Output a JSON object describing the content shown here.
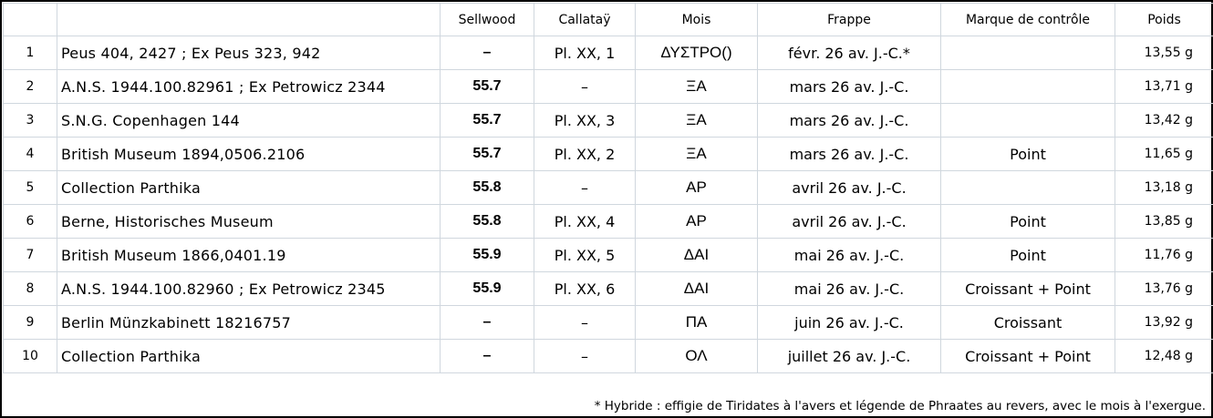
{
  "headers": {
    "index": "",
    "source": "",
    "sellwood": "Sellwood",
    "callatay": "Callataÿ",
    "mois": "Mois",
    "frappe": "Frappe",
    "marque": "Marque de contrôle",
    "poids": "Poids"
  },
  "rows": [
    {
      "n": "1",
      "source": "Peus 404, 2427 ; Ex Peus 323, 942",
      "sellwood": "–",
      "callatay": "Pl. XX, 1",
      "mois": "ΔΥΣΤΡΟ()",
      "frappe": "févr. 26 av. J.-C.*",
      "marque": "",
      "poids": "13,55 g"
    },
    {
      "n": "2",
      "source": "A.N.S. 1944.100.82961 ; Ex Petrowicz 2344",
      "sellwood": "55.7",
      "callatay": "–",
      "mois": "ΞΑ",
      "frappe": "mars 26 av. J.-C.",
      "marque": "",
      "poids": "13,71 g"
    },
    {
      "n": "3",
      "source": "S.N.G. Copenhagen 144",
      "sellwood": "55.7",
      "callatay": "Pl. XX, 3",
      "mois": "ΞΑ",
      "frappe": "mars 26 av. J.-C.",
      "marque": "",
      "poids": "13,42 g"
    },
    {
      "n": "4",
      "source": "British Museum 1894,0506.2106",
      "sellwood": "55.7",
      "callatay": "Pl. XX, 2",
      "mois": "ΞΑ",
      "frappe": "mars 26 av. J.-C.",
      "marque": "Point",
      "poids": "11,65 g"
    },
    {
      "n": "5",
      "source": "Collection Parthika",
      "sellwood": "55.8",
      "callatay": "–",
      "mois": "ΑΡ",
      "frappe": "avril 26 av. J.-C.",
      "marque": "",
      "poids": "13,18 g"
    },
    {
      "n": "6",
      "source": "Berne, Historisches Museum",
      "sellwood": "55.8",
      "callatay": "Pl. XX, 4",
      "mois": "ΑΡ",
      "frappe": "avril 26 av. J.-C.",
      "marque": "Point",
      "poids": "13,85 g"
    },
    {
      "n": "7",
      "source": "British Museum 1866,0401.19",
      "sellwood": "55.9",
      "callatay": "Pl. XX, 5",
      "mois": "ΔΑΙ",
      "frappe": "mai 26 av. J.-C.",
      "marque": "Point",
      "poids": "11,76 g"
    },
    {
      "n": "8",
      "source": "A.N.S. 1944.100.82960 ; Ex Petrowicz 2345",
      "sellwood": "55.9",
      "callatay": "Pl. XX, 6",
      "mois": "ΔΑΙ",
      "frappe": "mai 26 av. J.-C.",
      "marque": "Croissant + Point",
      "poids": "13,76 g"
    },
    {
      "n": "9",
      "source": "Berlin Münzkabinett 18216757",
      "sellwood": "–",
      "callatay": "–",
      "mois": "ΠΑ",
      "frappe": "juin 26 av. J.-C.",
      "marque": "Croissant",
      "poids": "13,92 g"
    },
    {
      "n": "10",
      "source": "Collection Parthika",
      "sellwood": "–",
      "callatay": "–",
      "mois": "ΟΛ",
      "frappe": "juillet 26 av. J.-C.",
      "marque": "Croissant + Point",
      "poids": "12,48 g"
    }
  ],
  "footnote": "* Hybride : effigie de Tiridates à l'avers et légende de Phraates au revers, avec le mois à l'exergue."
}
